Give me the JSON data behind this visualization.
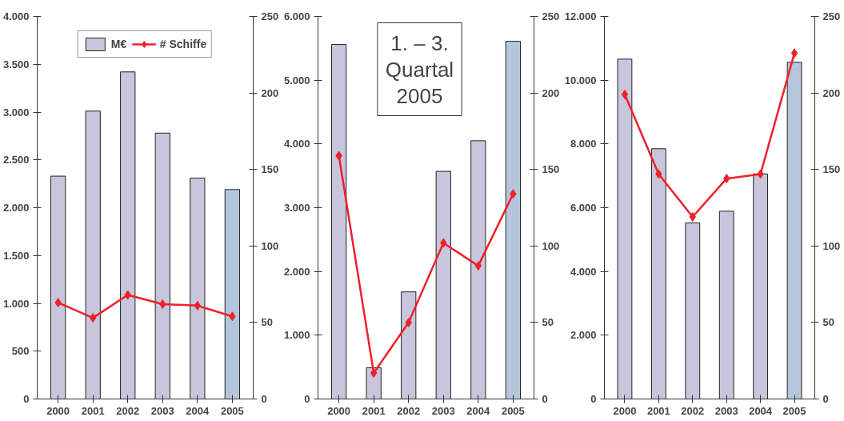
{
  "chart_data": [
    {
      "type": "bar",
      "categories": [
        "2000",
        "2001",
        "2002",
        "2003",
        "2004",
        "2005"
      ],
      "series": [
        {
          "name": "M€",
          "colors": [
            "#c8c6dc",
            "#c8c6dc",
            "#c8c6dc",
            "#c8c6dc",
            "#c8c6dc",
            "#b4c6dc"
          ],
          "values": [
            2330,
            3010,
            3420,
            2780,
            2310,
            2190
          ]
        },
        {
          "name": "# Schiffe",
          "type": "line",
          "axis": "y2",
          "color": "#f0202a",
          "values": [
            63,
            53,
            68,
            62,
            61,
            54
          ]
        }
      ],
      "ylim": [
        0,
        4000
      ],
      "yticks": [
        0,
        {
          "value": 500,
          "label": "500"
        },
        {
          "value": 1000,
          "label": "1.000"
        },
        {
          "value": 1500,
          "label": "1.500"
        },
        {
          "value": 2000,
          "label": "2.000"
        },
        {
          "value": 2500,
          "label": "2.500"
        },
        {
          "value": 3000,
          "label": "3.000"
        },
        {
          "value": 3500,
          "label": "3.500"
        },
        {
          "value": 4000,
          "label": "4.000"
        }
      ],
      "y2lim": [
        0,
        250
      ],
      "y2ticks": [
        0,
        50,
        100,
        150,
        200,
        250
      ],
      "marker": "diamond",
      "legend": "top",
      "grid": false
    },
    {
      "type": "bar",
      "categories": [
        "2000",
        "2001",
        "2002",
        "2003",
        "2004",
        "2005"
      ],
      "annotations": [
        "1. – 3.\nQuartal\n2005"
      ],
      "series": [
        {
          "colors": [
            "#c8c6dc",
            "#c8c6dc",
            "#c8c6dc",
            "#c8c6dc",
            "#c8c6dc",
            "#b4c6dc"
          ],
          "values": [
            5560,
            490,
            1680,
            3570,
            4050,
            5610
          ]
        },
        {
          "type": "line",
          "axis": "y2",
          "color": "#f0202a",
          "values": [
            159,
            17,
            50,
            102,
            87,
            134
          ]
        }
      ],
      "ylim": [
        0,
        6000
      ],
      "yticks": [
        0,
        {
          "value": 1000,
          "label": "1.000"
        },
        {
          "value": 2000,
          "label": "2.000"
        },
        {
          "value": 3000,
          "label": "3.000"
        },
        {
          "value": 4000,
          "label": "4.000"
        },
        {
          "value": 5000,
          "label": "5.000"
        },
        {
          "value": 6000,
          "label": "6.000"
        }
      ],
      "y2lim": [
        0,
        250
      ],
      "y2ticks": [
        0,
        50,
        100,
        150,
        200,
        250
      ],
      "marker": "diamond",
      "grid": false
    },
    {
      "type": "bar",
      "categories": [
        "2000",
        "2001",
        "2002",
        "2003",
        "2004",
        "2005"
      ],
      "series": [
        {
          "colors": [
            "#c8c6dc",
            "#c8c6dc",
            "#c8c6dc",
            "#c8c6dc",
            "#c8c6dc",
            "#b4c6dc"
          ],
          "values": [
            10660,
            7850,
            5520,
            5890,
            7060,
            10560
          ]
        },
        {
          "type": "line",
          "axis": "y2",
          "color": "#f0202a",
          "values": [
            199,
            147,
            119,
            144,
            147,
            226
          ]
        }
      ],
      "ylim": [
        0,
        12000
      ],
      "yticks": [
        0,
        {
          "value": 2000,
          "label": "2.000"
        },
        {
          "value": 4000,
          "label": "4.000"
        },
        {
          "value": 6000,
          "label": "6.000"
        },
        {
          "value": 8000,
          "label": "8.000"
        },
        {
          "value": 10000,
          "label": "10.000"
        },
        {
          "value": 12000,
          "label": "12.000"
        }
      ],
      "y2lim": [
        0,
        250
      ],
      "y2ticks": [
        0,
        50,
        100,
        150,
        200,
        250
      ],
      "marker": "diamond",
      "grid": false
    }
  ]
}
